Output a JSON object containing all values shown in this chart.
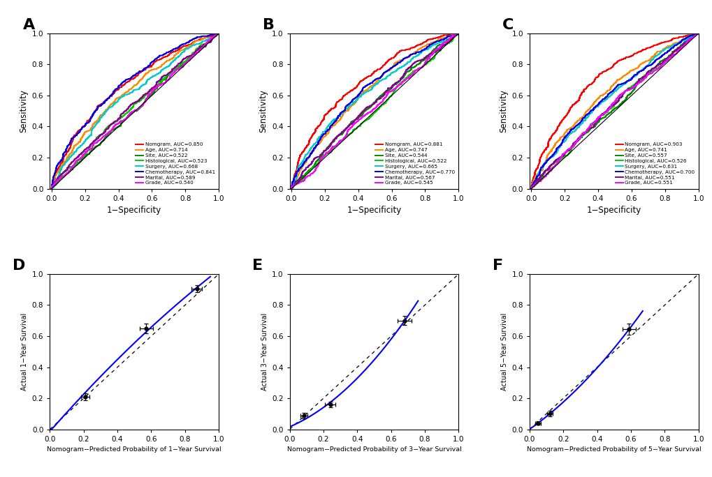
{
  "panel_labels": [
    "A",
    "B",
    "C",
    "D",
    "E",
    "F"
  ],
  "roc_xlabel": "1−Specificity",
  "roc_ylabel": "Sensitivity",
  "calib_xlabels": [
    "Nomogram−Predicted Probability of 1−Year Survival",
    "Nomogram−Predicted Probability of 3−Year Survival",
    "Nomogram−Predicted Probability of 5−Year Survival"
  ],
  "calib_ylabels": [
    "Actual 1−Year Survival",
    "Actual 3−Year Survival",
    "Actual 5−Year Survival"
  ],
  "legend_names": [
    "Nomgram",
    "Age",
    "Site",
    "Histological",
    "Surgery",
    "Chemotherapy",
    "Marital",
    "Grade"
  ],
  "colors": [
    "#FF0000",
    "#FF8C00",
    "#008B00",
    "#00CC00",
    "#00CCCC",
    "#0000EE",
    "#8B008B",
    "#FF00FF"
  ],
  "auc_A": [
    0.85,
    0.714,
    0.522,
    0.523,
    0.668,
    0.841,
    0.589,
    0.54
  ],
  "auc_B": [
    0.881,
    0.747,
    0.544,
    0.522,
    0.665,
    0.77,
    0.567,
    0.545
  ],
  "auc_C": [
    0.903,
    0.741,
    0.557,
    0.526,
    0.631,
    0.7,
    0.551,
    0.551
  ],
  "calib_D": {
    "x": [
      0.21,
      0.57,
      0.87
    ],
    "y": [
      0.21,
      0.65,
      0.905
    ],
    "xerr": [
      0.025,
      0.04,
      0.03
    ],
    "yerr": [
      0.022,
      0.03,
      0.022
    ]
  },
  "calib_E": {
    "x": [
      0.085,
      0.24,
      0.68
    ],
    "y": [
      0.09,
      0.16,
      0.7
    ],
    "xerr": [
      0.02,
      0.03,
      0.04
    ],
    "yerr": [
      0.018,
      0.02,
      0.03
    ]
  },
  "calib_F": {
    "x": [
      0.05,
      0.12,
      0.59
    ],
    "y": [
      0.04,
      0.1,
      0.645
    ],
    "xerr": [
      0.015,
      0.018,
      0.04
    ],
    "yerr": [
      0.012,
      0.018,
      0.038
    ]
  }
}
